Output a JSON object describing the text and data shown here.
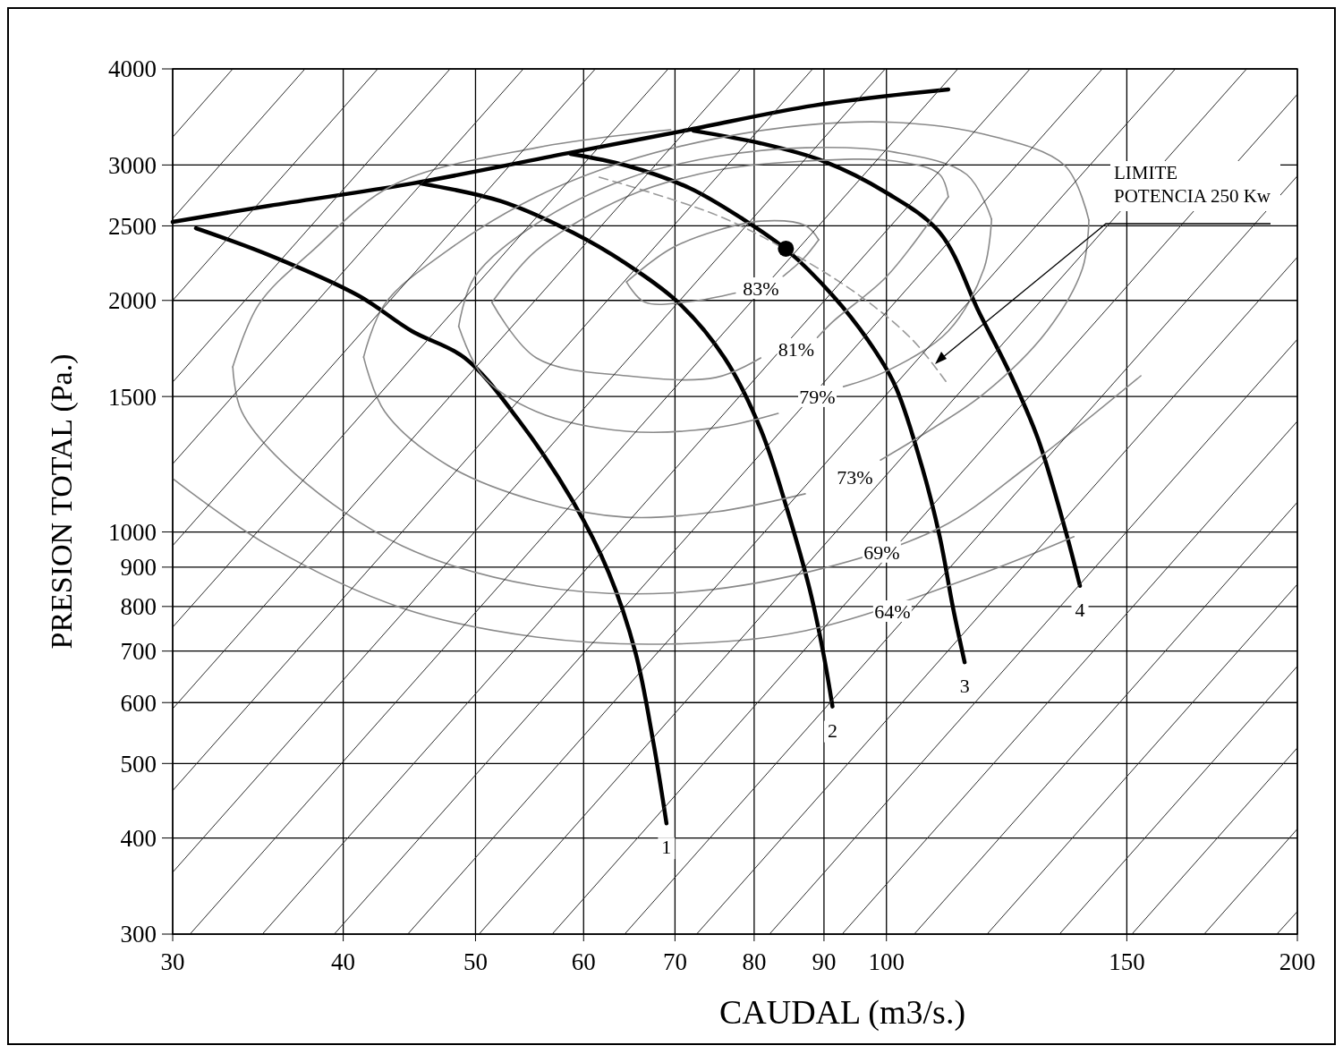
{
  "chart_data": {
    "type": "line",
    "xlabel": "CAUDAL (m3/s.)",
    "ylabel": "PRESION TOTAL (Pa.)",
    "log": "xy",
    "grid": true,
    "xlim": [
      30,
      200
    ],
    "xticks": [
      30,
      40,
      50,
      60,
      70,
      80,
      90,
      100,
      150,
      200
    ],
    "ylim": [
      300,
      4000
    ],
    "yticks": [
      300,
      400,
      500,
      600,
      700,
      800,
      900,
      1000,
      1500,
      2000,
      2500,
      3000,
      4000
    ],
    "series": [
      {
        "name": "1",
        "color": "#000000",
        "x": [
          31.2,
          35.3,
          41.0,
          44.9,
          49.1,
          53.8,
          58.9,
          62.6,
          65.5,
          67.5,
          69.0
        ],
        "values": [
          2483,
          2291,
          2031,
          1825,
          1684,
          1396,
          1097,
          885,
          696,
          532,
          418
        ]
      },
      {
        "name": "2",
        "color": "#000000",
        "x": [
          45.6,
          52.2,
          58.9,
          64.5,
          70.6,
          76.1,
          80.9,
          84.6,
          87.9,
          89.9,
          91.3
        ],
        "values": [
          2838,
          2691,
          2451,
          2231,
          1978,
          1684,
          1359,
          1068,
          839,
          696,
          593
        ]
      },
      {
        "name": "3",
        "color": "#000000",
        "x": [
          58.7,
          64.5,
          71.7,
          78.5,
          84.6,
          91.3,
          96.9,
          101.4,
          106.1,
          109.4,
          111.9,
          114.1
        ],
        "values": [
          3102,
          2995,
          2801,
          2551,
          2323,
          2031,
          1777,
          1554,
          1221,
          986,
          796,
          677
        ]
      },
      {
        "name": "4",
        "color": "#000000",
        "x": [
          72.2,
          80.9,
          89.9,
          99.9,
          109.4,
          117.0,
          123.4,
          129.1,
          135.1,
          138.6
        ],
        "values": [
          3324,
          3201,
          3035,
          2764,
          2451,
          1925,
          1596,
          1323,
          1012,
          851
        ]
      },
      {
        "color": "#000000",
        "x": [
          30,
          35.3,
          44.9,
          58.9,
          71.7,
          88.5,
          111.0
        ],
        "values": [
          2530,
          2655,
          2838,
          3117,
          3334,
          3585,
          3762
        ]
      },
      {
        "type": "scatter",
        "color": "#000000",
        "x": [
          84.4
        ],
        "values": [
          2335
        ]
      },
      {
        "color": "#9a9a9a",
        "line_style": "dashed",
        "x": [
          61.6,
          75.0,
          84.6,
          95.5,
          104.5,
          111.0
        ],
        "values": [
          2893,
          2584,
          2323,
          2031,
          1777,
          1554
        ]
      },
      {
        "color": "#8a8a8a",
        "x": [
          64.5,
          69.5,
          75.0,
          80.9,
          87.2,
          89.2
        ],
        "values": [
          2114,
          2335,
          2463,
          2536,
          2503,
          2398
        ]
      },
      {
        "color": "#8a8a8a",
        "x": [
          64.5,
          66.5,
          72.0,
          77.5
        ],
        "values": [
          2114,
          1990,
          1995,
          2045
        ]
      },
      {
        "color": "#8a8a8a",
        "x": [
          84.0,
          87.0,
          89.2
        ],
        "values": [
          2150,
          2270,
          2398
        ]
      },
      {
        "color": "#8a8a8a",
        "x": [
          89.0,
          91.3,
          99.9,
          107.8,
          111.0
        ],
        "values": [
          1790,
          1875,
          2143,
          2543,
          2727
        ]
      },
      {
        "color": "#8a8a8a",
        "x": [
          51.4,
          55.4,
          64.5,
          75.0,
          87.2,
          101.4,
          109.4,
          111.0
        ],
        "values": [
          1988,
          2323,
          2727,
          2951,
          3035,
          3035,
          2916,
          2727
        ]
      },
      {
        "color": "#8a8a8a",
        "x": [
          51.4,
          55.4,
          64.5,
          75.0,
          80.9
        ],
        "values": [
          1988,
          1684,
          1596,
          1588,
          1684
        ]
      },
      {
        "color": "#8a8a8a",
        "x": [
          93.0,
          99.9,
          111.0,
          117.9,
          119.4
        ],
        "values": [
          1545,
          1617,
          1825,
          2201,
          2551
        ]
      },
      {
        "color": "#8a8a8a",
        "x": [
          48.6,
          49.9,
          55.4,
          64.5,
          75.0,
          87.2,
          101.4,
          114.5,
          119.4
        ],
        "values": [
          1850,
          2143,
          2516,
          2878,
          3076,
          3159,
          3117,
          2916,
          2551
        ]
      },
      {
        "color": "#8a8a8a",
        "x": [
          48.6,
          50.6,
          55.4,
          64.5,
          75.0,
          83.3
        ],
        "values": [
          1850,
          1596,
          1434,
          1352,
          1366,
          1426
        ]
      },
      {
        "color": "#8a8a8a",
        "x": [
          99.0,
          107.8,
          117.9,
          131.1,
          139.2,
          140.7
        ],
        "values": [
          1240,
          1359,
          1513,
          1825,
          2201,
          2543
        ]
      },
      {
        "color": "#8a8a8a",
        "x": [
          41.4,
          42.9,
          47.7,
          55.4,
          64.5,
          75.0,
          87.2,
          101.4,
          117.9,
          135.1,
          140.7
        ],
        "values": [
          1688,
          1978,
          2323,
          2727,
          3035,
          3247,
          3380,
          3408,
          3289,
          2995,
          2543
        ]
      },
      {
        "color": "#8a8a8a",
        "x": [
          41.4,
          42.9,
          47.7,
          55.4,
          64.5,
          75.0,
          87.2
        ],
        "values": [
          1688,
          1434,
          1221,
          1097,
          1045,
          1062,
          1121
        ]
      },
      {
        "color": "#8a8a8a",
        "x": [
          33.2,
          33.7,
          36.9,
          44.2,
          55.4,
          69.5,
          87.2,
          109.4,
          127.2,
          153.6
        ],
        "values": [
          1639,
          1434,
          1189,
          959,
          851,
          833,
          885,
          1012,
          1221,
          1596
        ]
      },
      {
        "color": "#8a8a8a",
        "x": [
          33.2,
          34.7,
          38.0,
          43.5,
          55.4,
          69.5
        ],
        "values": [
          1639,
          1978,
          2323,
          2824,
          3159,
          3334
        ]
      },
      {
        "color": "#8a8a8a",
        "x": [
          30,
          35.3,
          44.2,
          55.4,
          69.5,
          87.2,
          117.9,
          137.2
        ],
        "values": [
          1173,
          959,
          796,
          730,
          715,
          744,
          885,
          986
        ]
      },
      {
        "color": "#2b2b2b",
        "x": [
          30,
          33.2
        ],
        "values": [
          3261,
          4000
        ]
      },
      {
        "color": "#2b2b2b",
        "x": [
          30,
          37.5
        ],
        "values": [
          2555,
          4000
        ]
      },
      {
        "color": "#2b2b2b",
        "x": [
          30,
          42.4
        ],
        "values": [
          2000,
          4000
        ]
      },
      {
        "color": "#2b2b2b",
        "x": [
          30,
          47.9
        ],
        "values": [
          1566,
          4000
        ]
      },
      {
        "color": "#2b2b2b",
        "x": [
          30,
          54.2
        ],
        "values": [
          1226,
          4000
        ]
      },
      {
        "color": "#2b2b2b",
        "x": [
          30,
          61.2
        ],
        "values": [
          960,
          4000
        ]
      },
      {
        "color": "#2b2b2b",
        "x": [
          30,
          69.2
        ],
        "values": [
          752,
          4000
        ]
      },
      {
        "color": "#2b2b2b",
        "x": [
          30,
          78.2
        ],
        "values": [
          589,
          4000
        ]
      },
      {
        "color": "#2b2b2b",
        "x": [
          30,
          88.3
        ],
        "values": [
          461,
          4000
        ]
      },
      {
        "color": "#2b2b2b",
        "x": [
          30,
          99.8
        ],
        "values": [
          361,
          4000
        ]
      },
      {
        "color": "#2b2b2b",
        "x": [
          30.89,
          112.8
        ],
        "values": [
          300,
          4000
        ]
      },
      {
        "color": "#2b2b2b",
        "x": [
          34.9,
          127.4
        ],
        "values": [
          300,
          4000
        ]
      },
      {
        "color": "#2b2b2b",
        "x": [
          39.4,
          143.9
        ],
        "values": [
          300,
          4000
        ]
      },
      {
        "color": "#2b2b2b",
        "x": [
          44.6,
          162.8
        ],
        "values": [
          300,
          4000
        ]
      },
      {
        "color": "#2b2b2b",
        "x": [
          50.3,
          183.6
        ],
        "values": [
          300,
          4000
        ]
      },
      {
        "color": "#2b2b2b",
        "x": [
          56.9,
          200
        ],
        "values": [
          300,
          3707
        ]
      },
      {
        "color": "#2b2b2b",
        "x": [
          64.3,
          200
        ],
        "values": [
          300,
          2903
        ]
      },
      {
        "color": "#2b2b2b",
        "x": [
          72.6,
          200
        ],
        "values": [
          300,
          2277
        ]
      },
      {
        "color": "#2b2b2b",
        "x": [
          82.1,
          200
        ],
        "values": [
          300,
          1780
        ]
      },
      {
        "color": "#2b2b2b",
        "x": [
          92.8,
          200
        ],
        "values": [
          300,
          1393
        ]
      },
      {
        "color": "#2b2b2b",
        "x": [
          104.8,
          200
        ],
        "values": [
          300,
          1093
        ]
      },
      {
        "color": "#2b2b2b",
        "x": [
          118.5,
          200
        ],
        "values": [
          300,
          855
        ]
      },
      {
        "color": "#2b2b2b",
        "x": [
          133.9,
          200
        ],
        "values": [
          300,
          669
        ]
      },
      {
        "color": "#2b2b2b",
        "x": [
          151.3,
          200
        ],
        "values": [
          300,
          524
        ]
      },
      {
        "color": "#2b2b2b",
        "x": [
          170.9,
          200
        ],
        "values": [
          300,
          411
        ]
      },
      {
        "color": "#2b2b2b",
        "x": [
          193.2,
          200
        ],
        "values": [
          300,
          321
        ]
      }
    ],
    "annotations": [
      "LIMITE\nPOTENCIA 250 Kw",
      {
        "text": "83%",
        "x": 80.9,
        "y": 2075
      },
      {
        "text": "81%",
        "x": 85.9,
        "y": 1730
      },
      {
        "text": "79%",
        "x": 89.0,
        "y": 1501
      },
      {
        "text": "73%",
        "x": 94.8,
        "y": 1179
      },
      {
        "text": "69%",
        "x": 99.2,
        "y": 942
      },
      {
        "text": "64%",
        "x": 101.0,
        "y": 789
      }
    ]
  }
}
